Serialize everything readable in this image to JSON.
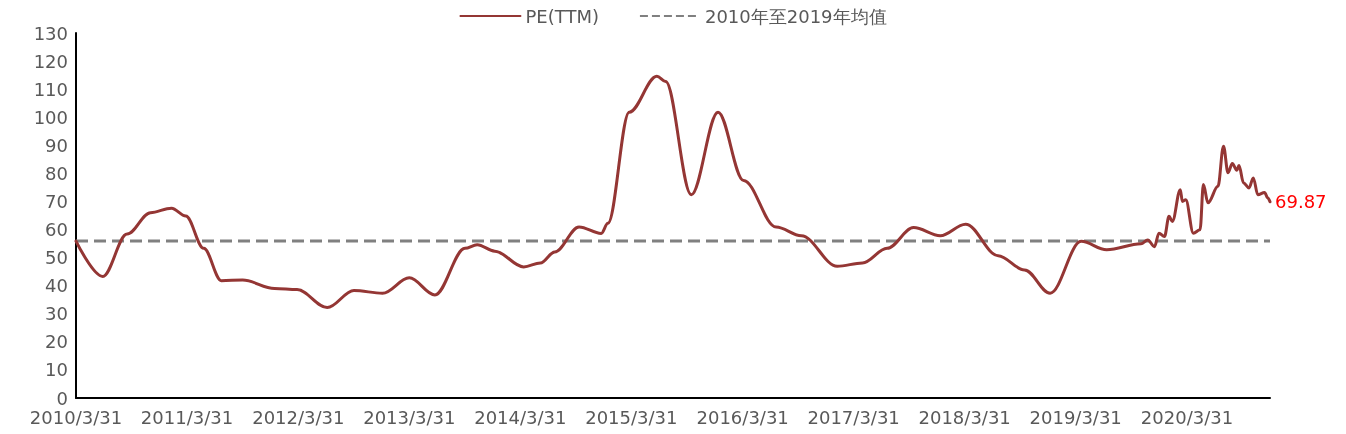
{
  "chart_data": {
    "type": "line",
    "x": [
      "2010-03-31",
      "2010-06-27",
      "2010-09-15",
      "2010-12-01",
      "2011-02-08",
      "2011-03-27",
      "2011-05-25",
      "2011-07-22",
      "2011-09-30",
      "2012-01-13",
      "2012-03-27",
      "2012-07-04",
      "2012-09-30",
      "2013-01-02",
      "2013-03-31",
      "2013-06-23",
      "2013-09-30",
      "2013-11-09",
      "2014-01-06",
      "2014-04-11",
      "2014-06-05",
      "2014-07-22",
      "2014-10-10",
      "2014-12-22",
      "2015-01-13",
      "2015-03-24",
      "2015-06-23",
      "2015-07-22",
      "2015-10-14",
      "2016-01-10",
      "2016-04-03",
      "2016-07-19",
      "2016-10-10",
      "2017-02-05",
      "2017-04-29",
      "2017-07-19",
      "2017-10-14",
      "2018-01-10",
      "2018-04-03",
      "2018-07-19",
      "2018-10-14",
      "2019-01-06",
      "2019-04-18",
      "2019-07-11",
      "2019-11-01",
      "2019-11-23",
      "2019-12-15",
      "2019-12-30",
      "2020-01-17",
      "2020-02-01",
      "2020-02-12",
      "2020-03-09",
      "2020-03-16",
      "2020-03-27",
      "2020-04-21",
      "2020-05-13",
      "2020-05-24",
      "2020-06-08",
      "2020-07-11",
      "2020-07-29",
      "2020-08-13",
      "2020-08-27",
      "2020-09-11",
      "2020-09-18",
      "2020-10-03",
      "2020-10-21",
      "2020-11-04",
      "2020-11-19",
      "2020-12-11",
      "2020-12-22",
      "2020-12-29"
    ],
    "series": [
      {
        "name": "PE(TTM)",
        "color": "#943634",
        "values": [
          55.9,
          43.3,
          58.4,
          66,
          67.6,
          64.8,
          53.3,
          41.8,
          42,
          39,
          38.6,
          32.2,
          38.3,
          37.3,
          42.8,
          36.7,
          53.3,
          54.6,
          52.3,
          46.7,
          48.1,
          52,
          60.9,
          58.6,
          62.2,
          101.8,
          114.6,
          112.7,
          72.4,
          101.8,
          77.5,
          60.9,
          57.8,
          46.9,
          48.1,
          53.3,
          60.7,
          57.8,
          61.9,
          50.7,
          45.6,
          37.3,
          55.8,
          52.8,
          54.9,
          56.3,
          53.9,
          58.7,
          57.5,
          64.7,
          62.9,
          74.2,
          70,
          70.6,
          58.7,
          59.9,
          76,
          69.5,
          75.4,
          89.7,
          80.2,
          83.5,
          81.1,
          82.8,
          76.6,
          74.8,
          78.4,
          72.4,
          73.2,
          71.2,
          69.87
        ],
        "value_labels": [
          null,
          null,
          null,
          null,
          null,
          null,
          null,
          null,
          null,
          null,
          null,
          null,
          null,
          null,
          null,
          null,
          null,
          null,
          null,
          null,
          null,
          null,
          null,
          null,
          null,
          null,
          null,
          null,
          null,
          null,
          null,
          null,
          null,
          null,
          null,
          null,
          null,
          null,
          null,
          null,
          null,
          null,
          null,
          null,
          null,
          null,
          null,
          null,
          null,
          null,
          null,
          null,
          null,
          null,
          null,
          null,
          null,
          null,
          null,
          null,
          null,
          null,
          null,
          null,
          null,
          null,
          null,
          null,
          null,
          null,
          "69.87"
        ]
      }
    ],
    "ref_lines": [
      {
        "axis": "y",
        "value": 55.9,
        "label": "2010年至2019年均值",
        "color": "#808080",
        "line_style": "dashed"
      }
    ],
    "xlim": [
      "2010-03-31",
      "2020-12-29"
    ],
    "xticks": [
      {
        "value": "2010-03-31",
        "label": "2010/3/31"
      },
      {
        "value": "2011-03-31",
        "label": "2011/3/31"
      },
      {
        "value": "2012-03-31",
        "label": "2012/3/31"
      },
      {
        "value": "2013-03-31",
        "label": "2013/3/31"
      },
      {
        "value": "2014-03-31",
        "label": "2014/3/31"
      },
      {
        "value": "2015-03-31",
        "label": "2015/3/31"
      },
      {
        "value": "2016-03-31",
        "label": "2016/3/31"
      },
      {
        "value": "2017-03-31",
        "label": "2017/3/31"
      },
      {
        "value": "2018-03-31",
        "label": "2018/3/31"
      },
      {
        "value": "2019-03-31",
        "label": "2019/3/31"
      },
      {
        "value": "2020-03-31",
        "label": "2020/3/31"
      }
    ],
    "ylim": [
      0,
      130
    ],
    "yticks": [
      0,
      10,
      20,
      30,
      40,
      50,
      60,
      70,
      80,
      90,
      100,
      110,
      120,
      130
    ],
    "grid": false,
    "legend": "top",
    "marker": "none",
    "line_style": "solid"
  }
}
